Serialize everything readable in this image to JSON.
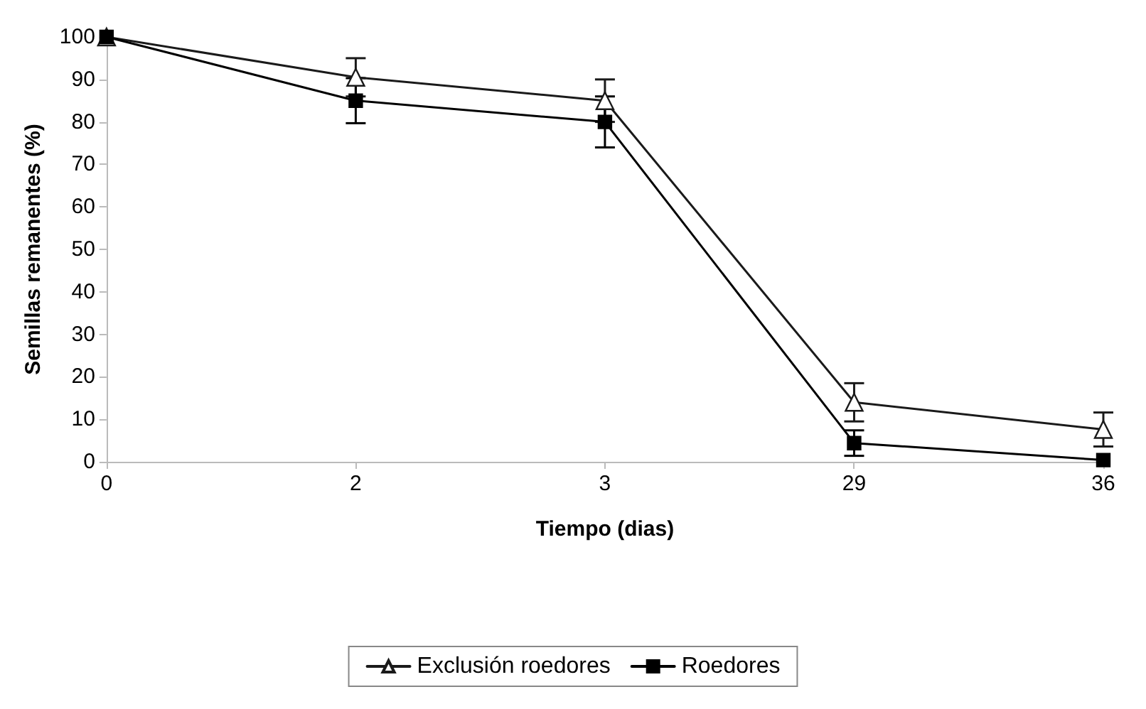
{
  "chart_data": {
    "type": "line",
    "xlabel": "Tiempo (dias)",
    "ylabel": "Semillas remanentes (%)",
    "categories": [
      "0",
      "2",
      "3",
      "29",
      "36"
    ],
    "series": [
      {
        "name": "Exclusión roedores",
        "color": "#1a1a1a",
        "marker": "triangle",
        "values": [
          100,
          90.5,
          85,
          14,
          7.6
        ],
        "errors": [
          null,
          4.5,
          5,
          4.5,
          4
        ]
      },
      {
        "name": "Roedores",
        "color": "#000000",
        "marker": "square",
        "values": [
          100,
          85,
          80,
          4.4,
          0.4
        ],
        "errors": [
          null,
          5.3,
          6,
          3,
          null
        ]
      }
    ],
    "ylim": [
      0,
      100
    ],
    "yticks": [
      0,
      10,
      20,
      30,
      40,
      50,
      60,
      70,
      80,
      90,
      100
    ],
    "grid": false,
    "legend": "bottom"
  }
}
